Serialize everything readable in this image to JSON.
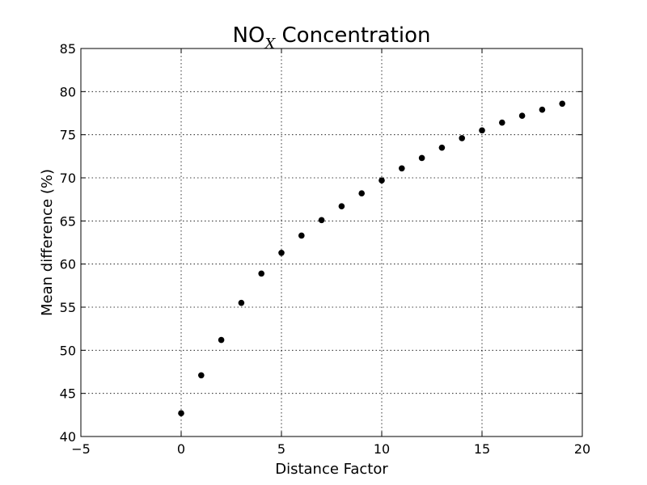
{
  "chart_data": {
    "type": "scatter",
    "title": "NO",
    "title_subscript": "X",
    "title_suffix": " Concentration",
    "xlabel": "Distance Factor",
    "ylabel": "Mean difference (%)",
    "xlim": [
      -5,
      20
    ],
    "ylim": [
      40,
      85
    ],
    "grid": true,
    "marker_color": "#000000",
    "xticks": [
      -5,
      0,
      5,
      10,
      15,
      20
    ],
    "xtick_labels": [
      "−5",
      "0",
      "5",
      "10",
      "15",
      "20"
    ],
    "yticks": [
      40,
      45,
      50,
      55,
      60,
      65,
      70,
      75,
      80,
      85
    ],
    "ytick_labels": [
      "40",
      "45",
      "50",
      "55",
      "60",
      "65",
      "70",
      "75",
      "80",
      "85"
    ],
    "series": [
      {
        "name": "NOx",
        "x": [
          0,
          1,
          2,
          3,
          4,
          5,
          6,
          7,
          8,
          9,
          10,
          11,
          12,
          13,
          14,
          15,
          16,
          17,
          18,
          19
        ],
        "y": [
          42.7,
          47.1,
          51.2,
          55.5,
          58.9,
          61.3,
          63.3,
          65.1,
          66.7,
          68.2,
          69.7,
          71.1,
          72.3,
          73.5,
          74.6,
          75.5,
          76.4,
          77.2,
          77.9,
          78.6
        ]
      }
    ]
  }
}
